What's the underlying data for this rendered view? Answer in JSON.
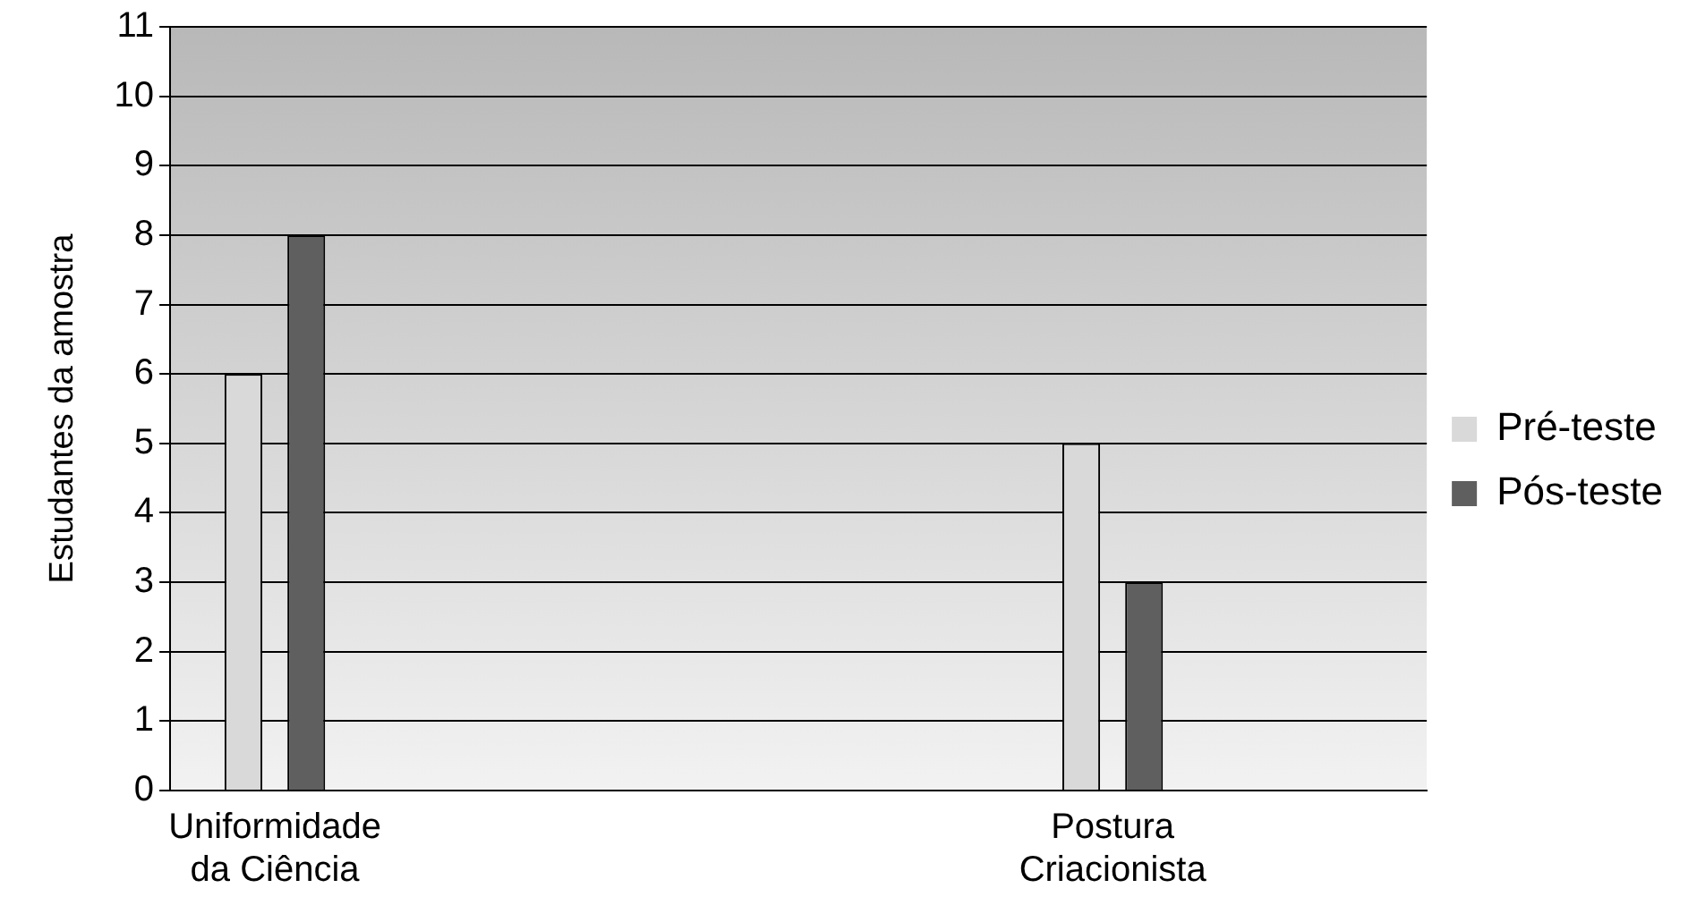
{
  "chart_data": {
    "type": "bar",
    "ylabel": "Estudantes da amostra",
    "categories": [
      "Uniformidade\nda Ciência",
      null,
      null,
      null,
      "Postura\nCriacionista",
      null
    ],
    "series": [
      {
        "name": "Pré-teste",
        "color": "#d9d9d9",
        "values": [
          6,
          null,
          null,
          null,
          5,
          null
        ]
      },
      {
        "name": "Pós-teste",
        "color": "#5f5f5f",
        "values": [
          8,
          null,
          null,
          null,
          3,
          null
        ]
      }
    ],
    "ylim": [
      0,
      11
    ],
    "yticks": [
      0,
      1,
      2,
      3,
      4,
      5,
      6,
      7,
      8,
      9,
      10,
      11
    ],
    "grid": "y",
    "legend": "right"
  }
}
